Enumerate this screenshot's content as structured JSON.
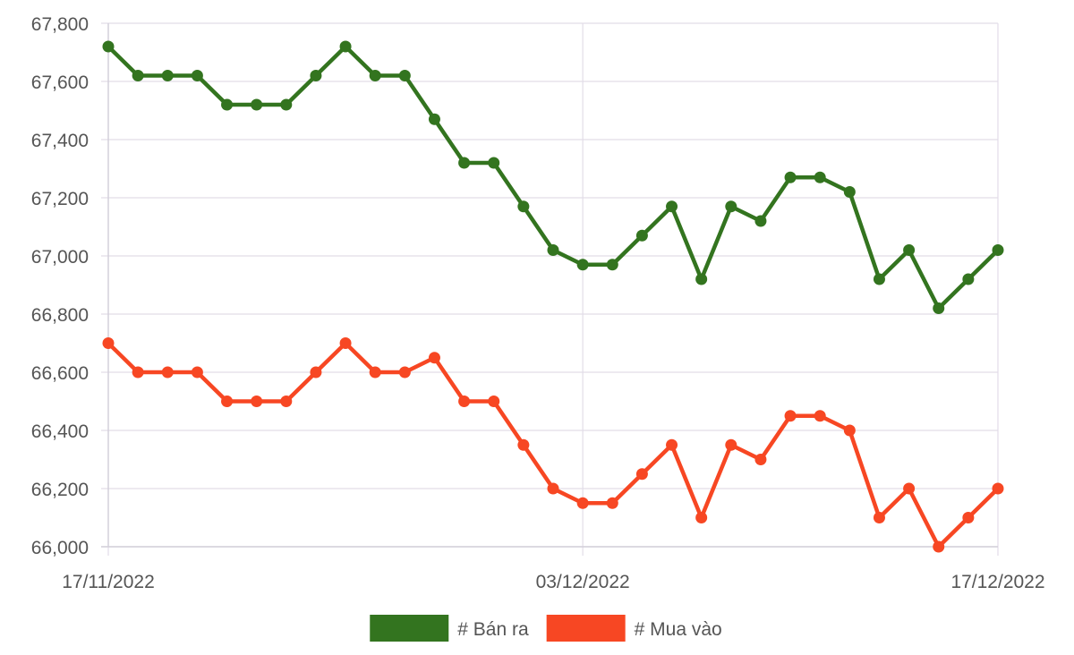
{
  "chart_data": {
    "type": "line",
    "title": "",
    "xlabel": "",
    "ylabel": "",
    "ylim": [
      66000,
      67800
    ],
    "yticks": [
      66000,
      66200,
      66400,
      66600,
      66800,
      67000,
      67200,
      67400,
      67600,
      67800
    ],
    "ytick_labels": [
      "66,000",
      "66,200",
      "66,400",
      "66,600",
      "66,800",
      "67,000",
      "67,200",
      "67,400",
      "67,600",
      "67,800"
    ],
    "x": [
      "17/11/2022",
      "18/11/2022",
      "19/11/2022",
      "20/11/2022",
      "21/11/2022",
      "22/11/2022",
      "23/11/2022",
      "24/11/2022",
      "25/11/2022",
      "26/11/2022",
      "27/11/2022",
      "28/11/2022",
      "29/11/2022",
      "30/11/2022",
      "01/12/2022",
      "02/12/2022",
      "03/12/2022",
      "04/12/2022",
      "05/12/2022",
      "06/12/2022",
      "07/12/2022",
      "08/12/2022",
      "09/12/2022",
      "10/12/2022",
      "11/12/2022",
      "12/12/2022",
      "13/12/2022",
      "14/12/2022",
      "15/12/2022",
      "16/12/2022",
      "17/12/2022"
    ],
    "xtick_labels": [
      "17/11/2022",
      "03/12/2022",
      "17/12/2022"
    ],
    "grid": true,
    "legend_position": "bottom",
    "series": [
      {
        "name": "# Bán ra",
        "color": "#33741f",
        "values": [
          67720,
          67620,
          67620,
          67620,
          67520,
          67520,
          67520,
          67620,
          67720,
          67620,
          67620,
          67470,
          67320,
          67320,
          67170,
          67020,
          66970,
          66970,
          67070,
          67170,
          66920,
          67170,
          67120,
          67270,
          67270,
          67220,
          66920,
          67020,
          66820,
          66920,
          67020
        ]
      },
      {
        "name": "# Mua vào",
        "color": "#f74723",
        "values": [
          66700,
          66600,
          66600,
          66600,
          66500,
          66500,
          66500,
          66600,
          66700,
          66600,
          66600,
          66650,
          66500,
          66500,
          66350,
          66200,
          66150,
          66150,
          66250,
          66350,
          66100,
          66350,
          66300,
          66450,
          66450,
          66400,
          66100,
          66200,
          66000,
          66100,
          66200
        ]
      }
    ]
  }
}
